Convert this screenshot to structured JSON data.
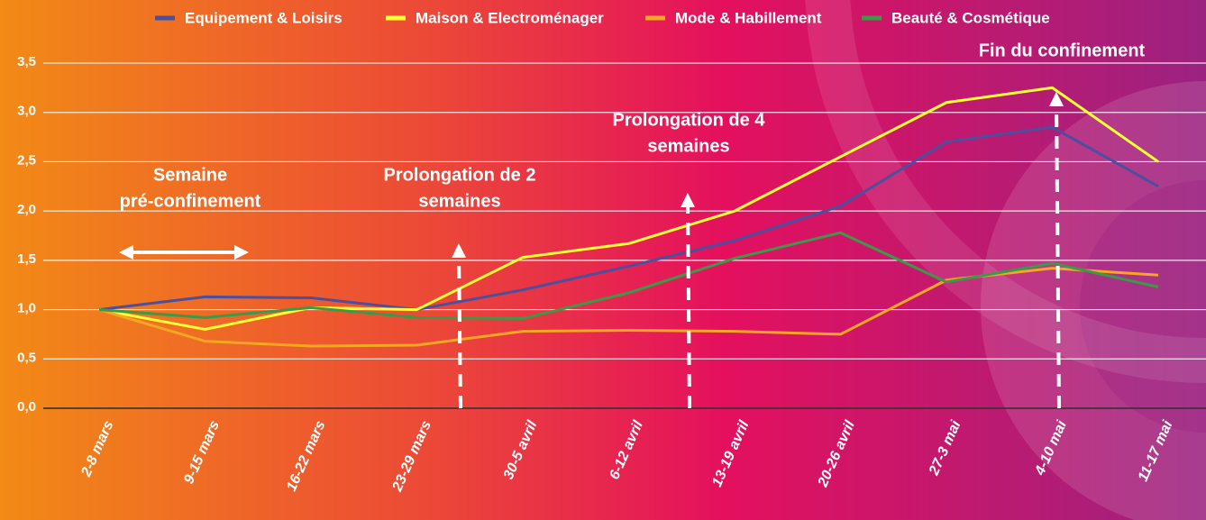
{
  "chart_data": {
    "type": "line",
    "categories": [
      "2-8 mars",
      "9-15 mars",
      "16-22 mars",
      "23-29 mars",
      "30-5 avril",
      "6-12 avril",
      "13-19 avril",
      "20-26 avril",
      "27-3 mai",
      "4-10 mai",
      "11-17 mai"
    ],
    "series": [
      {
        "name": "Equipement & Loisirs",
        "color": "#4a4f9e",
        "values": [
          1.0,
          1.13,
          1.12,
          1.0,
          1.2,
          1.44,
          1.7,
          2.05,
          2.7,
          2.85,
          2.25
        ]
      },
      {
        "name": "Maison & Electroménager",
        "color": "#ffff33",
        "values": [
          1.0,
          0.8,
          1.02,
          1.0,
          1.53,
          1.67,
          2.0,
          2.55,
          3.1,
          3.25,
          2.5
        ]
      },
      {
        "name": "Mode & Habillement",
        "color": "#f5a623",
        "values": [
          1.0,
          0.68,
          0.63,
          0.64,
          0.78,
          0.79,
          0.78,
          0.75,
          1.3,
          1.42,
          1.35
        ]
      },
      {
        "name": "Beauté & Cosmétique",
        "color": "#3a9a47",
        "values": [
          1.0,
          0.92,
          1.02,
          0.92,
          0.91,
          1.17,
          1.52,
          1.78,
          1.28,
          1.47,
          1.23
        ]
      }
    ],
    "ylim": [
      0,
      3.5
    ],
    "yticks": [
      {
        "value": 0,
        "label": "0,0"
      },
      {
        "value": 0.5,
        "label": "0,5"
      },
      {
        "value": 1,
        "label": "1,0"
      },
      {
        "value": 1.5,
        "label": "1,5"
      },
      {
        "value": 2,
        "label": "2,0"
      },
      {
        "value": 2.5,
        "label": "2,5"
      },
      {
        "value": 3,
        "label": "3,0"
      },
      {
        "value": 3.5,
        "label": "3,5"
      }
    ],
    "grid": true,
    "legend": "top",
    "annotations": [
      {
        "lines": [
          "Semaine",
          "pré-confinement"
        ]
      },
      {
        "lines": [
          "Prolongation de 2",
          "semaines"
        ]
      },
      {
        "lines": [
          "Prolongation de 4",
          "semaines"
        ]
      },
      {
        "lines": [
          "Fin du confinement"
        ]
      }
    ]
  }
}
